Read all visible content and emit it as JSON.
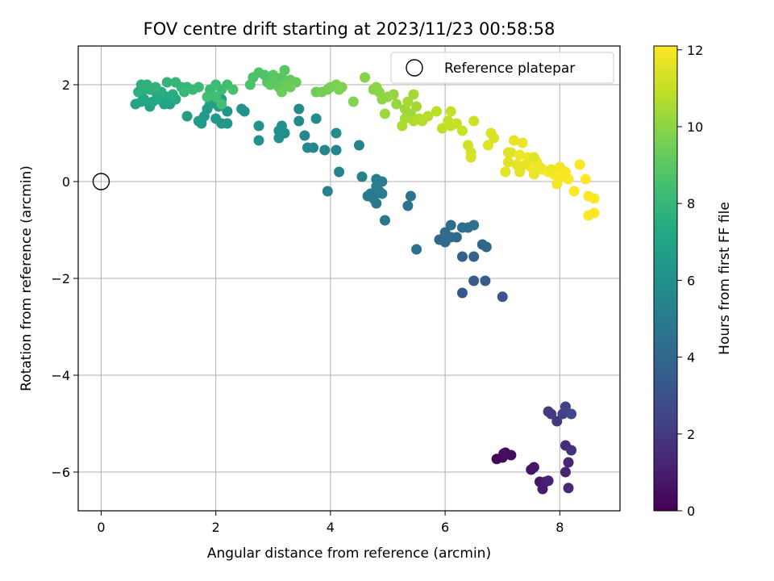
{
  "chart_data": {
    "type": "scatter",
    "title": "FOV centre drift starting at 2023/11/23 00:58:58",
    "xlabel": "Angular distance from reference (arcmin)",
    "ylabel": "Rotation from reference (arcmin)",
    "xlim": [
      -0.4,
      9.05
    ],
    "ylim": [
      -6.8,
      2.8
    ],
    "xticks": [
      0,
      2,
      4,
      6,
      8
    ],
    "yticks": [
      -6,
      -4,
      -2,
      0,
      2
    ],
    "xtick_labels": [
      "0",
      "2",
      "4",
      "6",
      "8"
    ],
    "ytick_labels": [
      "−6",
      "−4",
      "−2",
      "0",
      "2"
    ],
    "grid": true,
    "colormap": "viridis",
    "colorbar": {
      "label": "Hours from first FF file",
      "range": [
        0,
        12.1
      ],
      "ticks": [
        0,
        2,
        4,
        6,
        8,
        10,
        12
      ],
      "tick_labels": [
        "0",
        "2",
        "4",
        "6",
        "8",
        "10",
        "12"
      ]
    },
    "legend": {
      "position": "top-right",
      "entries": [
        "Reference platepar"
      ]
    },
    "reference_point": {
      "x": 0,
      "y": 0
    },
    "series": [
      {
        "points": [
          [
            6.9,
            -5.73,
            0.1
          ],
          [
            7.0,
            -5.7,
            0.2
          ],
          [
            7.05,
            -5.6,
            0.3
          ],
          [
            7.15,
            -5.65,
            0.4
          ],
          [
            7.02,
            -5.62,
            0.5
          ],
          [
            7.5,
            -5.95,
            0.6
          ],
          [
            7.55,
            -5.9,
            0.7
          ],
          [
            7.65,
            -6.2,
            0.8
          ],
          [
            7.7,
            -6.35,
            0.9
          ],
          [
            7.75,
            -6.2,
            1.0
          ],
          [
            7.8,
            -6.18,
            1.1
          ],
          [
            8.1,
            -6.0,
            1.2
          ],
          [
            8.15,
            -5.8,
            1.3
          ],
          [
            8.15,
            -6.33,
            1.4
          ],
          [
            8.1,
            -5.45,
            1.5
          ],
          [
            8.2,
            -5.55,
            1.7
          ],
          [
            7.95,
            -4.95,
            1.9
          ],
          [
            7.8,
            -4.75,
            2.0
          ],
          [
            7.85,
            -4.8,
            2.1
          ],
          [
            8.05,
            -4.8,
            2.3
          ],
          [
            8.1,
            -4.65,
            2.4
          ],
          [
            8.2,
            -4.8,
            2.5
          ],
          [
            7.0,
            -2.38,
            3.2
          ],
          [
            6.3,
            -2.3,
            3.3
          ],
          [
            6.5,
            -2.05,
            3.5
          ],
          [
            6.7,
            -2.05,
            3.6
          ],
          [
            6.3,
            -1.55,
            3.7
          ],
          [
            6.5,
            -1.55,
            3.8
          ],
          [
            6.65,
            -1.3,
            3.9
          ],
          [
            6.72,
            -1.35,
            4.0
          ],
          [
            5.9,
            -1.2,
            4.0
          ],
          [
            6.0,
            -1.25,
            4.1
          ],
          [
            6.1,
            -1.15,
            4.15
          ],
          [
            6.2,
            -1.15,
            4.2
          ],
          [
            6.0,
            -1.05,
            4.25
          ],
          [
            6.1,
            -0.9,
            4.3
          ],
          [
            6.3,
            -0.95,
            4.35
          ],
          [
            6.4,
            -0.95,
            4.4
          ],
          [
            6.5,
            -0.9,
            4.45
          ],
          [
            5.5,
            -1.4,
            4.5
          ],
          [
            5.35,
            -0.5,
            4.6
          ],
          [
            5.4,
            -0.3,
            4.65
          ],
          [
            4.95,
            -0.8,
            4.7
          ],
          [
            4.8,
            -0.45,
            4.8
          ],
          [
            4.75,
            -0.35,
            4.85
          ],
          [
            4.65,
            -0.3,
            4.9
          ],
          [
            4.7,
            -0.25,
            4.95
          ],
          [
            4.85,
            -0.2,
            5.0
          ],
          [
            4.9,
            -0.25,
            5.05
          ],
          [
            4.8,
            -0.1,
            5.1
          ],
          [
            4.9,
            0.0,
            5.15
          ],
          [
            4.8,
            0.05,
            5.2
          ],
          [
            4.55,
            0.1,
            5.25
          ],
          [
            3.95,
            -0.2,
            5.3
          ],
          [
            4.15,
            0.2,
            5.35
          ],
          [
            4.5,
            0.75,
            5.4
          ],
          [
            4.1,
            0.65,
            5.45
          ],
          [
            3.9,
            0.65,
            5.5
          ],
          [
            3.7,
            0.7,
            5.55
          ],
          [
            3.6,
            0.7,
            5.6
          ],
          [
            3.55,
            0.95,
            5.65
          ],
          [
            3.45,
            1.25,
            5.7
          ],
          [
            3.45,
            1.5,
            5.75
          ],
          [
            3.75,
            1.3,
            5.8
          ],
          [
            4.1,
            1.0,
            5.85
          ],
          [
            3.2,
            1.0,
            5.9
          ],
          [
            3.1,
            0.9,
            5.95
          ],
          [
            3.1,
            1.05,
            6.0
          ],
          [
            3.15,
            1.15,
            6.05
          ],
          [
            2.75,
            1.15,
            6.1
          ],
          [
            2.75,
            0.85,
            6.15
          ],
          [
            2.5,
            1.45,
            6.2
          ],
          [
            2.45,
            1.5,
            6.25
          ],
          [
            2.2,
            1.45,
            6.3
          ],
          [
            2.1,
            1.2,
            6.35
          ],
          [
            2.2,
            1.2,
            6.4
          ],
          [
            2.0,
            1.3,
            6.45
          ],
          [
            1.75,
            1.2,
            6.5
          ],
          [
            1.8,
            1.35,
            6.55
          ],
          [
            1.85,
            1.5,
            6.6
          ],
          [
            1.7,
            1.25,
            6.65
          ],
          [
            1.5,
            1.35,
            6.7
          ],
          [
            2.05,
            1.55,
            6.75
          ],
          [
            1.9,
            1.6,
            6.8
          ],
          [
            2.1,
            1.7,
            6.85
          ],
          [
            1.2,
            1.6,
            6.9
          ],
          [
            1.1,
            1.6,
            6.95
          ],
          [
            0.85,
            1.55,
            7.0
          ],
          [
            0.6,
            1.6,
            7.05
          ],
          [
            0.7,
            1.65,
            7.1
          ],
          [
            0.75,
            1.7,
            7.15
          ],
          [
            0.9,
            1.65,
            7.2
          ],
          [
            1.0,
            1.7,
            7.25
          ],
          [
            1.15,
            1.75,
            7.3
          ],
          [
            1.3,
            1.7,
            7.35
          ],
          [
            1.25,
            1.8,
            7.4
          ],
          [
            1.05,
            1.85,
            7.45
          ],
          [
            0.95,
            1.85,
            7.5
          ],
          [
            0.85,
            1.9,
            7.55
          ],
          [
            0.75,
            1.9,
            7.6
          ],
          [
            0.65,
            1.85,
            7.65
          ],
          [
            0.7,
            2.0,
            7.7
          ],
          [
            0.8,
            2.0,
            7.75
          ],
          [
            0.95,
            1.95,
            7.8
          ],
          [
            1.15,
            2.05,
            7.85
          ],
          [
            1.3,
            2.05,
            7.9
          ],
          [
            1.4,
            1.95,
            7.95
          ],
          [
            1.5,
            1.95,
            8.0
          ],
          [
            1.6,
            1.9,
            8.05
          ],
          [
            1.45,
            1.85,
            8.1
          ],
          [
            1.7,
            1.95,
            8.15
          ],
          [
            1.9,
            1.9,
            8.2
          ],
          [
            2.0,
            2.0,
            8.25
          ],
          [
            2.1,
            1.9,
            8.3
          ],
          [
            2.2,
            2.0,
            8.35
          ],
          [
            2.0,
            1.75,
            8.4
          ],
          [
            1.85,
            1.75,
            8.45
          ],
          [
            2.1,
            1.6,
            8.5
          ],
          [
            2.3,
            1.9,
            8.55
          ],
          [
            2.6,
            2.0,
            8.6
          ],
          [
            2.65,
            2.15,
            8.65
          ],
          [
            2.75,
            2.25,
            8.7
          ],
          [
            2.85,
            2.2,
            8.75
          ],
          [
            2.9,
            2.05,
            8.8
          ],
          [
            3.05,
            2.1,
            8.85
          ],
          [
            3.15,
            2.15,
            8.9
          ],
          [
            3.2,
            2.3,
            8.95
          ],
          [
            3.0,
            2.2,
            9.0
          ],
          [
            2.95,
            2.0,
            9.05
          ],
          [
            3.1,
            1.95,
            9.1
          ],
          [
            3.25,
            2.05,
            9.15
          ],
          [
            3.3,
            2.1,
            9.2
          ],
          [
            3.4,
            2.05,
            9.25
          ],
          [
            3.2,
            2.0,
            9.3
          ],
          [
            3.15,
            1.85,
            9.35
          ],
          [
            3.3,
            1.95,
            9.4
          ],
          [
            3.75,
            1.85,
            9.45
          ],
          [
            3.85,
            1.85,
            9.5
          ],
          [
            3.95,
            1.9,
            9.55
          ],
          [
            4.0,
            1.95,
            9.6
          ],
          [
            4.15,
            1.9,
            9.65
          ],
          [
            4.1,
            2.0,
            9.7
          ],
          [
            4.2,
            1.95,
            9.75
          ],
          [
            4.4,
            1.65,
            9.8
          ],
          [
            4.6,
            2.15,
            9.85
          ],
          [
            4.75,
            1.9,
            9.9
          ],
          [
            4.8,
            1.95,
            9.95
          ],
          [
            4.85,
            1.85,
            10.0
          ],
          [
            4.9,
            1.7,
            10.05
          ],
          [
            5.0,
            1.75,
            10.1
          ],
          [
            5.1,
            1.8,
            10.15
          ],
          [
            5.15,
            1.6,
            10.2
          ],
          [
            4.95,
            1.4,
            10.25
          ],
          [
            5.3,
            1.5,
            10.3
          ],
          [
            5.4,
            1.4,
            10.35
          ],
          [
            5.5,
            1.55,
            10.4
          ],
          [
            5.45,
            1.8,
            10.45
          ],
          [
            5.35,
            1.65,
            10.5
          ],
          [
            5.3,
            1.3,
            10.55
          ],
          [
            5.25,
            1.15,
            10.6
          ],
          [
            5.45,
            1.25,
            10.65
          ],
          [
            5.55,
            1.3,
            10.7
          ],
          [
            5.6,
            1.25,
            10.75
          ],
          [
            5.7,
            1.35,
            10.8
          ],
          [
            5.85,
            1.45,
            10.85
          ],
          [
            5.95,
            1.1,
            10.9
          ],
          [
            6.05,
            1.25,
            10.95
          ],
          [
            6.1,
            1.15,
            11.0
          ],
          [
            6.2,
            1.2,
            11.05
          ],
          [
            6.1,
            1.45,
            11.1
          ],
          [
            6.3,
            1.05,
            11.15
          ],
          [
            6.5,
            1.25,
            11.2
          ],
          [
            6.4,
            0.75,
            11.25
          ],
          [
            6.45,
            0.6,
            11.3
          ],
          [
            6.45,
            0.5,
            11.35
          ],
          [
            6.8,
            1.0,
            11.4
          ],
          [
            6.85,
            0.9,
            11.45
          ],
          [
            6.75,
            0.75,
            11.5
          ],
          [
            7.1,
            0.4,
            11.55
          ],
          [
            7.15,
            0.6,
            11.6
          ],
          [
            7.05,
            0.2,
            11.65
          ],
          [
            7.2,
            0.85,
            11.7
          ],
          [
            7.35,
            0.8,
            11.75
          ],
          [
            7.3,
            0.55,
            11.8
          ],
          [
            7.45,
            0.5,
            11.85
          ],
          [
            7.5,
            0.3,
            11.9
          ],
          [
            7.6,
            0.4,
            11.95
          ],
          [
            7.7,
            0.25,
            12.0
          ],
          [
            7.8,
            0.2,
            12.05
          ],
          [
            7.9,
            0.15,
            12.1
          ],
          [
            7.95,
            -0.05,
            11.9
          ],
          [
            8.05,
            0.1,
            12.0
          ],
          [
            8.15,
            0.05,
            12.05
          ],
          [
            8.25,
            -0.2,
            12.1
          ],
          [
            8.35,
            0.35,
            12.1
          ],
          [
            8.45,
            0.05,
            12.1
          ],
          [
            8.5,
            -0.3,
            12.1
          ],
          [
            8.6,
            -0.35,
            12.1
          ],
          [
            8.5,
            -0.7,
            12.1
          ],
          [
            8.6,
            -0.65,
            12.1
          ],
          [
            7.4,
            0.35,
            11.7
          ],
          [
            7.55,
            0.15,
            11.75
          ],
          [
            7.65,
            0.3,
            11.8
          ],
          [
            7.85,
            0.25,
            11.85
          ],
          [
            8.0,
            0.3,
            11.95
          ],
          [
            8.1,
            0.2,
            12.0
          ],
          [
            7.3,
            0.2,
            11.6
          ],
          [
            7.25,
            0.35,
            11.65
          ],
          [
            7.55,
            0.5,
            11.5
          ],
          [
            7.1,
            0.6,
            11.55
          ]
        ]
      }
    ]
  }
}
